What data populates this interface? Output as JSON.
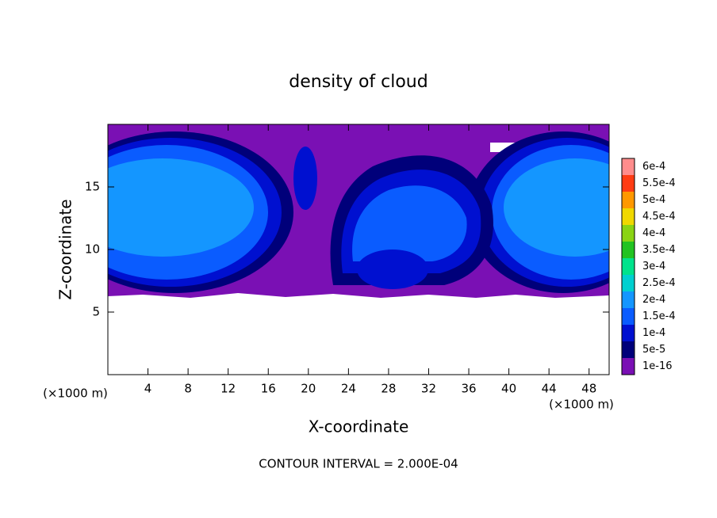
{
  "chart_data": {
    "type": "contour",
    "title": "density of cloud",
    "x_label": "X-coordinate",
    "y_label": "Z-coordinate",
    "x_unit": "(×1000 m)",
    "annotation": "CONTOUR INTERVAL = 2.000E-04",
    "xlim": [
      0,
      50
    ],
    "xticks": [
      4,
      8,
      12,
      16,
      20,
      24,
      28,
      32,
      36,
      40,
      44,
      48
    ],
    "ylim": [
      0,
      20
    ],
    "yticks": [
      5,
      10,
      15
    ],
    "levels": [
      {
        "value": 1e-16,
        "label": "1e-16"
      },
      {
        "value": 5e-05,
        "label": "5e-5"
      },
      {
        "value": 0.0001,
        "label": "1e-4"
      },
      {
        "value": 0.00015,
        "label": "1.5e-4"
      },
      {
        "value": 0.0002,
        "label": "2e-4"
      },
      {
        "value": 0.00025,
        "label": "2.5e-4"
      },
      {
        "value": 0.0003,
        "label": "3e-4"
      },
      {
        "value": 0.00035,
        "label": "3.5e-4"
      },
      {
        "value": 0.0004,
        "label": "4e-4"
      },
      {
        "value": 0.00045,
        "label": "4.5e-4"
      },
      {
        "value": 0.0005,
        "label": "5e-4"
      },
      {
        "value": 0.00055,
        "label": "5.5e-4"
      },
      {
        "value": 0.0006,
        "label": "6e-4"
      }
    ],
    "colors": [
      "#7a10b4",
      "#00007a",
      "#0010d0",
      "#0a5cff",
      "#1496ff",
      "#00d0d0",
      "#00e38c",
      "#22c322",
      "#8ad414",
      "#f0d800",
      "#ff9800",
      "#ff3c14",
      "#ff8c8c"
    ]
  }
}
